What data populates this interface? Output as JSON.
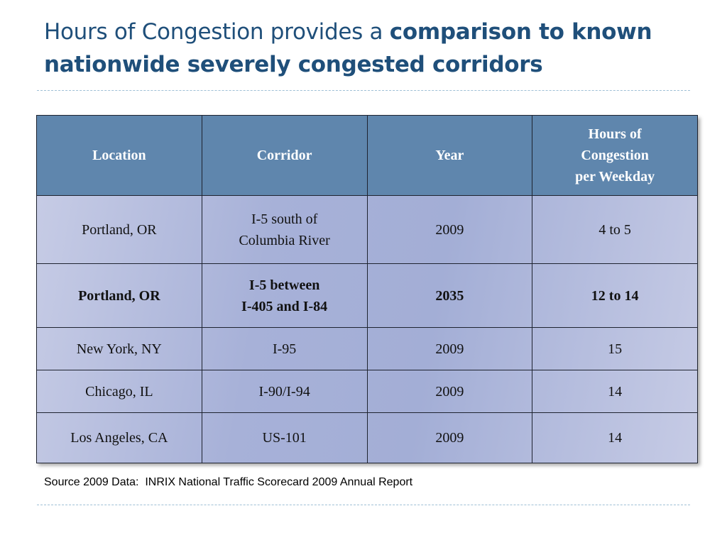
{
  "slide": {
    "title_normal": "Hours of Congestion provides a ",
    "title_bold": "comparison to known nationwide severely congested corridors",
    "source_text": "Source 2009 Data:  INRIX National Traffic Scorecard 2009 Annual Report",
    "colors": {
      "title": "#1f4f7a",
      "header_bg": "#5f86ad",
      "body_bg": "#a7b1d8",
      "rule": "#9fc0d6"
    }
  },
  "table": {
    "headers": [
      "Location",
      "Corridor",
      "Year",
      "Hours of\nCongestion\nper Weekday"
    ],
    "rows": [
      {
        "location": "Portland, OR",
        "corridor": "I-5 south of\nColumbia River",
        "year": "2009",
        "hours": "4 to 5",
        "bold": false
      },
      {
        "location": "Portland, OR",
        "corridor": "I-5 between\nI-405 and I-84",
        "year": "2035",
        "hours": "12 to 14",
        "bold": true
      },
      {
        "location": "New York, NY",
        "corridor": "I-95",
        "year": "2009",
        "hours": "15",
        "bold": false
      },
      {
        "location": "Chicago, IL",
        "corridor": "I-90/I-94",
        "year": "2009",
        "hours": "14",
        "bold": false
      },
      {
        "location": "Los Angeles, CA",
        "corridor": "US-101",
        "year": "2009",
        "hours": "14",
        "bold": false
      }
    ]
  }
}
